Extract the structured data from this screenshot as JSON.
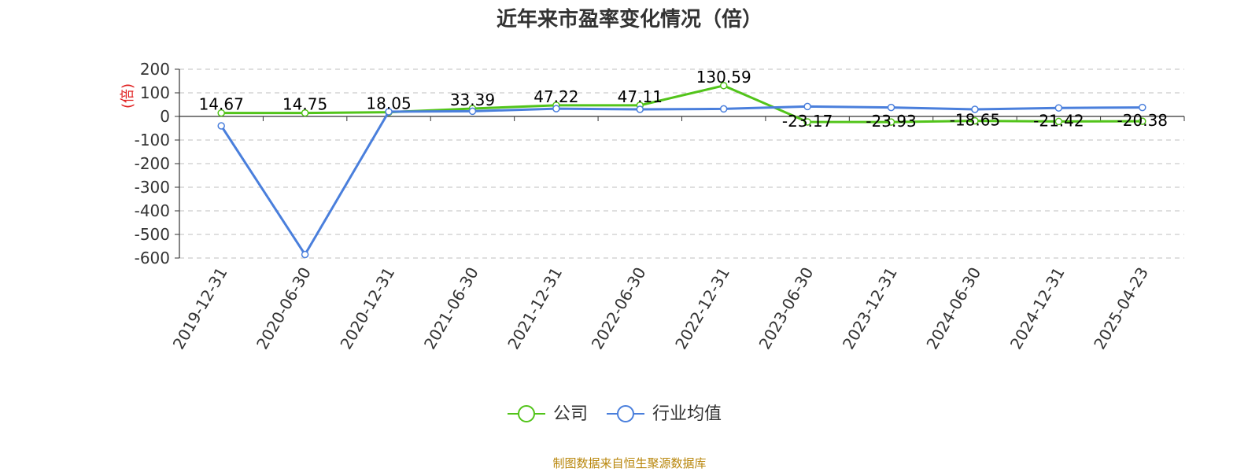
{
  "chart_data": {
    "type": "line",
    "title": "近年来市盈率变化情况（倍）",
    "ylabel": "(倍)",
    "source": "制图数据来自恒生聚源数据库",
    "categories": [
      "2019-12-31",
      "2020-06-30",
      "2020-12-31",
      "2021-06-30",
      "2021-12-31",
      "2022-06-30",
      "2022-12-31",
      "2023-06-30",
      "2023-12-31",
      "2024-06-30",
      "2024-12-31",
      "2025-04-23"
    ],
    "series": [
      {
        "name": "公司",
        "color": "#52c41a",
        "values": [
          14.67,
          14.75,
          18.05,
          33.39,
          47.22,
          47.11,
          130.59,
          -23.17,
          -23.93,
          -18.65,
          -21.42,
          -20.38
        ],
        "labels": [
          "14.67",
          "14.75",
          "18.05",
          "33.39",
          "47.22",
          "47.11",
          "130.59",
          "-23.17",
          "-23.93",
          "-18.65",
          "-21.42",
          "-20.38"
        ]
      },
      {
        "name": "行业均值",
        "color": "#4a7fdc",
        "values": [
          -40,
          -585,
          20,
          22,
          33,
          30,
          32,
          42,
          38,
          30,
          36,
          38
        ]
      }
    ],
    "yticks": [
      200,
      100,
      0,
      -100,
      -200,
      -300,
      -400,
      -500,
      -600
    ],
    "ylim": [
      -600,
      200
    ],
    "grid": true,
    "legend_position": "bottom"
  }
}
